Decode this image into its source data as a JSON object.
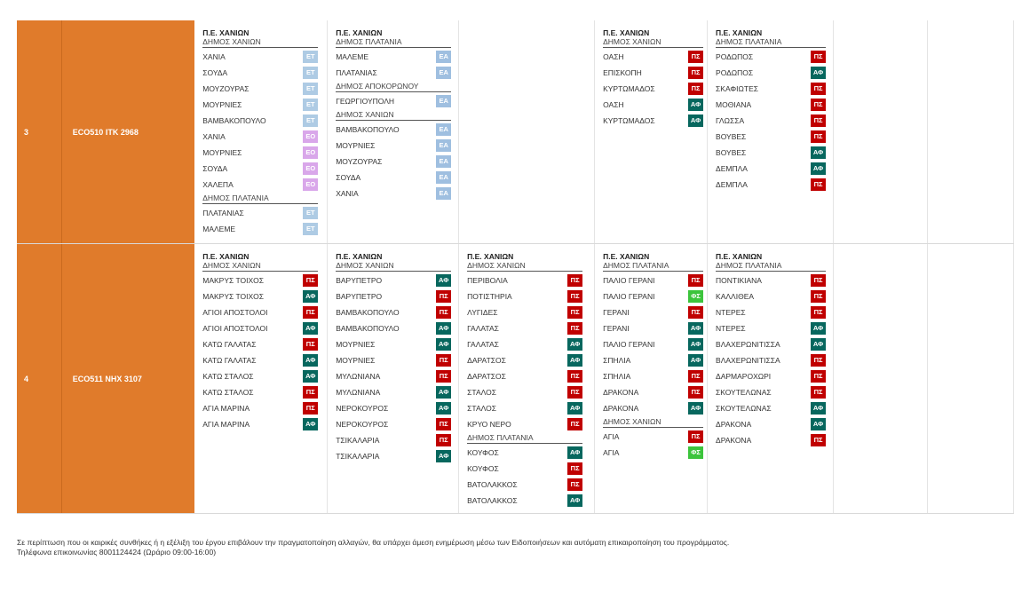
{
  "colors": {
    "ET": "#aecbe4",
    "EA": "#9fbfe0",
    "EO": "#d9a7ea",
    "ΠΣ": "#c00000",
    "ΑΦ": "#07675e",
    "ΦΣ": "#3cc43c",
    "accent": "#e07b2b"
  },
  "rows": [
    {
      "num": "3",
      "code": "ECO510  ΙΤΚ 2968",
      "days": [
        [
          {
            "pe": "Π.Ε. ΧΑΝΙΩΝ",
            "dhmos": "ΔΗΜΟΣ ΧΑΝΙΩΝ",
            "items": [
              {
                "name": "ΧΑΝΙΑ",
                "badge": "ET"
              },
              {
                "name": "ΣΟΥΔΑ",
                "badge": "ET"
              },
              {
                "name": "ΜΟΥΖΟΥΡΑΣ",
                "badge": "ET"
              },
              {
                "name": "ΜΟΥΡΝΙΕΣ",
                "badge": "ET"
              },
              {
                "name": "ΒΑΜΒΑΚΟΠΟΥΛΟ",
                "badge": "ET"
              },
              {
                "name": "ΧΑΝΙΑ",
                "badge": "EO"
              },
              {
                "name": "ΜΟΥΡΝΙΕΣ",
                "badge": "EO"
              },
              {
                "name": "ΣΟΥΔΑ",
                "badge": "EO"
              },
              {
                "name": "ΧΑΛΕΠΑ",
                "badge": "EO"
              }
            ]
          },
          {
            "dhmos": "ΔΗΜΟΣ ΠΛΑΤΑΝΙΑ",
            "items": [
              {
                "name": "ΠΛΑΤΑΝΙΑΣ",
                "badge": "ET"
              },
              {
                "name": "ΜΑΛΕΜΕ",
                "badge": "ET"
              }
            ]
          }
        ],
        [
          {
            "pe": "Π.Ε. ΧΑΝΙΩΝ",
            "dhmos": "ΔΗΜΟΣ ΠΛΑΤΑΝΙΑ",
            "items": [
              {
                "name": "ΜΑΛΕΜΕ",
                "badge": "EA"
              },
              {
                "name": "ΠΛΑΤΑΝΙΑΣ",
                "badge": "EA"
              }
            ]
          },
          {
            "dhmos": "ΔΗΜΟΣ ΑΠΟΚΟΡΩΝΟΥ",
            "items": [
              {
                "name": "ΓΕΩΡΓΙΟΥΠΟΛΗ",
                "badge": "EA"
              }
            ]
          },
          {
            "dhmos": "ΔΗΜΟΣ ΧΑΝΙΩΝ",
            "items": [
              {
                "name": "ΒΑΜΒΑΚΟΠΟΥΛΟ",
                "badge": "EA"
              },
              {
                "name": "ΜΟΥΡΝΙΕΣ",
                "badge": "EA"
              },
              {
                "name": "ΜΟΥΖΟΥΡΑΣ",
                "badge": "EA"
              },
              {
                "name": "ΣΟΥΔΑ",
                "badge": "EA"
              },
              {
                "name": "ΧΑΝΙΑ",
                "badge": "EA"
              }
            ]
          }
        ],
        [],
        [
          {
            "pe": "Π.Ε. ΧΑΝΙΩΝ",
            "dhmos": "ΔΗΜΟΣ ΧΑΝΙΩΝ",
            "items": [
              {
                "name": "ΟΑΣΗ",
                "badge": "ΠΣ"
              },
              {
                "name": "ΕΠΙΣΚΟΠΗ",
                "badge": "ΠΣ"
              },
              {
                "name": "ΚΥΡΤΩΜΑΔΟΣ",
                "badge": "ΠΣ"
              },
              {
                "name": "ΟΑΣΗ",
                "badge": "ΑΦ"
              },
              {
                "name": "ΚΥΡΤΩΜΑΔΟΣ",
                "badge": "ΑΦ"
              }
            ]
          }
        ],
        [
          {
            "pe": "Π.Ε. ΧΑΝΙΩΝ",
            "dhmos": "ΔΗΜΟΣ ΠΛΑΤΑΝΙΑ",
            "items": [
              {
                "name": "ΡΟΔΩΠΟΣ",
                "badge": "ΠΣ"
              },
              {
                "name": "ΡΟΔΩΠΟΣ",
                "badge": "ΑΦ"
              },
              {
                "name": "ΣΚΑΦΙΩΤΕΣ",
                "badge": "ΠΣ"
              },
              {
                "name": "ΜΟΘΙΑΝΑ",
                "badge": "ΠΣ"
              },
              {
                "name": "ΓΛΩΣΣΑ",
                "badge": "ΠΣ"
              },
              {
                "name": "ΒΟΥΒΕΣ",
                "badge": "ΠΣ"
              },
              {
                "name": "ΒΟΥΒΕΣ",
                "badge": "ΑΦ"
              },
              {
                "name": "ΔΕΜΠΛΑ",
                "badge": "ΑΦ"
              },
              {
                "name": "ΔΕΜΠΛΑ",
                "badge": "ΠΣ"
              }
            ]
          }
        ],
        [],
        []
      ]
    },
    {
      "num": "4",
      "code": "ECO511  ΝΗΧ 3107",
      "days": [
        [
          {
            "pe": "Π.Ε. ΧΑΝΙΩΝ",
            "dhmos": "ΔΗΜΟΣ ΧΑΝΙΩΝ",
            "items": [
              {
                "name": "ΜΑΚΡΥΣ ΤΟΙΧΟΣ",
                "badge": "ΠΣ"
              },
              {
                "name": "ΜΑΚΡΥΣ ΤΟΙΧΟΣ",
                "badge": "ΑΦ"
              },
              {
                "name": "ΑΓΙΟΙ ΑΠΟΣΤΟΛΟΙ",
                "badge": "ΠΣ"
              },
              {
                "name": "ΑΓΙΟΙ ΑΠΟΣΤΟΛΟΙ",
                "badge": "ΑΦ"
              },
              {
                "name": "ΚΑΤΩ ΓΑΛΑΤΑΣ",
                "badge": "ΠΣ"
              },
              {
                "name": "ΚΑΤΩ ΓΑΛΑΤΑΣ",
                "badge": "ΑΦ"
              },
              {
                "name": "ΚΑΤΩ ΣΤΑΛΟΣ",
                "badge": "ΑΦ"
              },
              {
                "name": "ΚΑΤΩ ΣΤΑΛΟΣ",
                "badge": "ΠΣ"
              },
              {
                "name": "ΑΓΙΑ ΜΑΡΙΝΑ",
                "badge": "ΠΣ"
              },
              {
                "name": "ΑΓΙΑ ΜΑΡΙΝΑ",
                "badge": "ΑΦ"
              }
            ]
          }
        ],
        [
          {
            "pe": "Π.Ε. ΧΑΝΙΩΝ",
            "dhmos": "ΔΗΜΟΣ ΧΑΝΙΩΝ",
            "items": [
              {
                "name": "ΒΑΡΥΠΕΤΡΟ",
                "badge": "ΑΦ"
              },
              {
                "name": "ΒΑΡΥΠΕΤΡΟ",
                "badge": "ΠΣ"
              },
              {
                "name": "ΒΑΜΒΑΚΟΠΟΥΛΟ",
                "badge": "ΠΣ"
              },
              {
                "name": "ΒΑΜΒΑΚΟΠΟΥΛΟ",
                "badge": "ΑΦ"
              },
              {
                "name": "ΜΟΥΡΝΙΕΣ",
                "badge": "ΑΦ"
              },
              {
                "name": "ΜΟΥΡΝΙΕΣ",
                "badge": "ΠΣ"
              },
              {
                "name": "ΜΥΛΩΝΙΑΝΑ",
                "badge": "ΠΣ"
              },
              {
                "name": "ΜΥΛΩΝΙΑΝΑ",
                "badge": "ΑΦ"
              },
              {
                "name": "ΝΕΡΟΚΟΥΡΟΣ",
                "badge": "ΑΦ"
              },
              {
                "name": "ΝΕΡΟΚΟΥΡΟΣ",
                "badge": "ΠΣ"
              },
              {
                "name": "ΤΣΙΚΑΛΑΡΙΑ",
                "badge": "ΠΣ"
              },
              {
                "name": "ΤΣΙΚΑΛΑΡΙΑ",
                "badge": "ΑΦ"
              }
            ]
          }
        ],
        [
          {
            "pe": "Π.Ε. ΧΑΝΙΩΝ",
            "dhmos": "ΔΗΜΟΣ ΧΑΝΙΩΝ",
            "items": [
              {
                "name": "ΠΕΡΙΒΟΛΙΑ",
                "badge": "ΠΣ"
              },
              {
                "name": "ΠΟΤΙΣΤΗΡΙΑ",
                "badge": "ΠΣ"
              },
              {
                "name": "ΛΥΓΙΔΕΣ",
                "badge": "ΠΣ"
              },
              {
                "name": "ΓΑΛΑΤΑΣ",
                "badge": "ΠΣ"
              },
              {
                "name": "ΓΑΛΑΤΑΣ",
                "badge": "ΑΦ"
              },
              {
                "name": "ΔΑΡΑΤΣΟΣ",
                "badge": "ΑΦ"
              },
              {
                "name": "ΔΑΡΑΤΣΟΣ",
                "badge": "ΠΣ"
              },
              {
                "name": "ΣΤΑΛΟΣ",
                "badge": "ΠΣ"
              },
              {
                "name": "ΣΤΑΛΟΣ",
                "badge": "ΑΦ"
              },
              {
                "name": "ΚΡΥΟ ΝΕΡΟ",
                "badge": "ΠΣ"
              }
            ]
          },
          {
            "dhmos": "ΔΗΜΟΣ ΠΛΑΤΑΝΙΑ",
            "items": [
              {
                "name": "ΚΟΥΦΟΣ",
                "badge": "ΑΦ"
              },
              {
                "name": "ΚΟΥΦΟΣ",
                "badge": "ΠΣ"
              },
              {
                "name": "ΒΑΤΟΛΑΚΚΟΣ",
                "badge": "ΠΣ"
              },
              {
                "name": "ΒΑΤΟΛΑΚΚΟΣ",
                "badge": "ΑΦ"
              }
            ]
          }
        ],
        [
          {
            "pe": "Π.Ε. ΧΑΝΙΩΝ",
            "dhmos": "ΔΗΜΟΣ ΠΛΑΤΑΝΙΑ",
            "items": [
              {
                "name": "ΠΑΛΙΟ ΓΕΡΑΝΙ",
                "badge": "ΠΣ"
              },
              {
                "name": "ΠΑΛΙΟ ΓΕΡΑΝΙ",
                "badge": "ΦΣ"
              },
              {
                "name": "ΓΕΡΑΝΙ",
                "badge": "ΠΣ"
              },
              {
                "name": "ΓΕΡΑΝΙ",
                "badge": "ΑΦ"
              },
              {
                "name": "ΠΑΛΙΟ ΓΕΡΑΝΙ",
                "badge": "ΑΦ"
              },
              {
                "name": "ΣΠΗΛΙΑ",
                "badge": "ΑΦ"
              },
              {
                "name": "ΣΠΗΛΙΑ",
                "badge": "ΠΣ"
              },
              {
                "name": "ΔΡΑΚΟΝΑ",
                "badge": "ΠΣ"
              },
              {
                "name": "ΔΡΑΚΟΝΑ",
                "badge": "ΑΦ"
              }
            ]
          },
          {
            "dhmos": "ΔΗΜΟΣ ΧΑΝΙΩΝ",
            "items": [
              {
                "name": "ΑΓΙΑ",
                "badge": "ΠΣ"
              },
              {
                "name": "ΑΓΙΑ",
                "badge": "ΦΣ"
              }
            ]
          }
        ],
        [
          {
            "pe": "Π.Ε. ΧΑΝΙΩΝ",
            "dhmos": "ΔΗΜΟΣ ΠΛΑΤΑΝΙΑ",
            "items": [
              {
                "name": "ΠΟΝΤΙΚΙΑΝΑ",
                "badge": "ΠΣ"
              },
              {
                "name": "ΚΑΛΛΙΘΕΑ",
                "badge": "ΠΣ"
              },
              {
                "name": "ΝΤΕΡΕΣ",
                "badge": "ΠΣ"
              },
              {
                "name": "ΝΤΕΡΕΣ",
                "badge": "ΑΦ"
              },
              {
                "name": "ΒΛΑΧΕΡΩΝΙΤΙΣΣΑ",
                "badge": "ΑΦ"
              },
              {
                "name": "ΒΛΑΧΕΡΩΝΙΤΙΣΣΑ",
                "badge": "ΠΣ"
              },
              {
                "name": "ΔΑΡΜΑΡΟΧΩΡΙ",
                "badge": "ΠΣ"
              },
              {
                "name": "ΣΚΟΥΤΕΛΩΝΑΣ",
                "badge": "ΠΣ"
              },
              {
                "name": "ΣΚΟΥΤΕΛΩΝΑΣ",
                "badge": "ΑΦ"
              },
              {
                "name": "ΔΡΑΚΟΝΑ",
                "badge": "ΑΦ"
              },
              {
                "name": "ΔΡΑΚΟΝΑ",
                "badge": "ΠΣ"
              }
            ]
          }
        ],
        [],
        []
      ]
    }
  ],
  "footer": {
    "line1": "Σε περίπτωση που οι καιρικές συνθήκες ή η εξέλιξη του έργου επιβάλουν την πραγματοποίηση αλλαγών, θα υπάρχει άμεση ενημέρωση μέσω των Ειδοποιήσεων και αυτόματη επικαιροποίηση του προγράμματος.",
    "line2": "Τηλέφωνα επικοινωνίας 8001124424 (Ωράριο 09:00-16:00)"
  }
}
